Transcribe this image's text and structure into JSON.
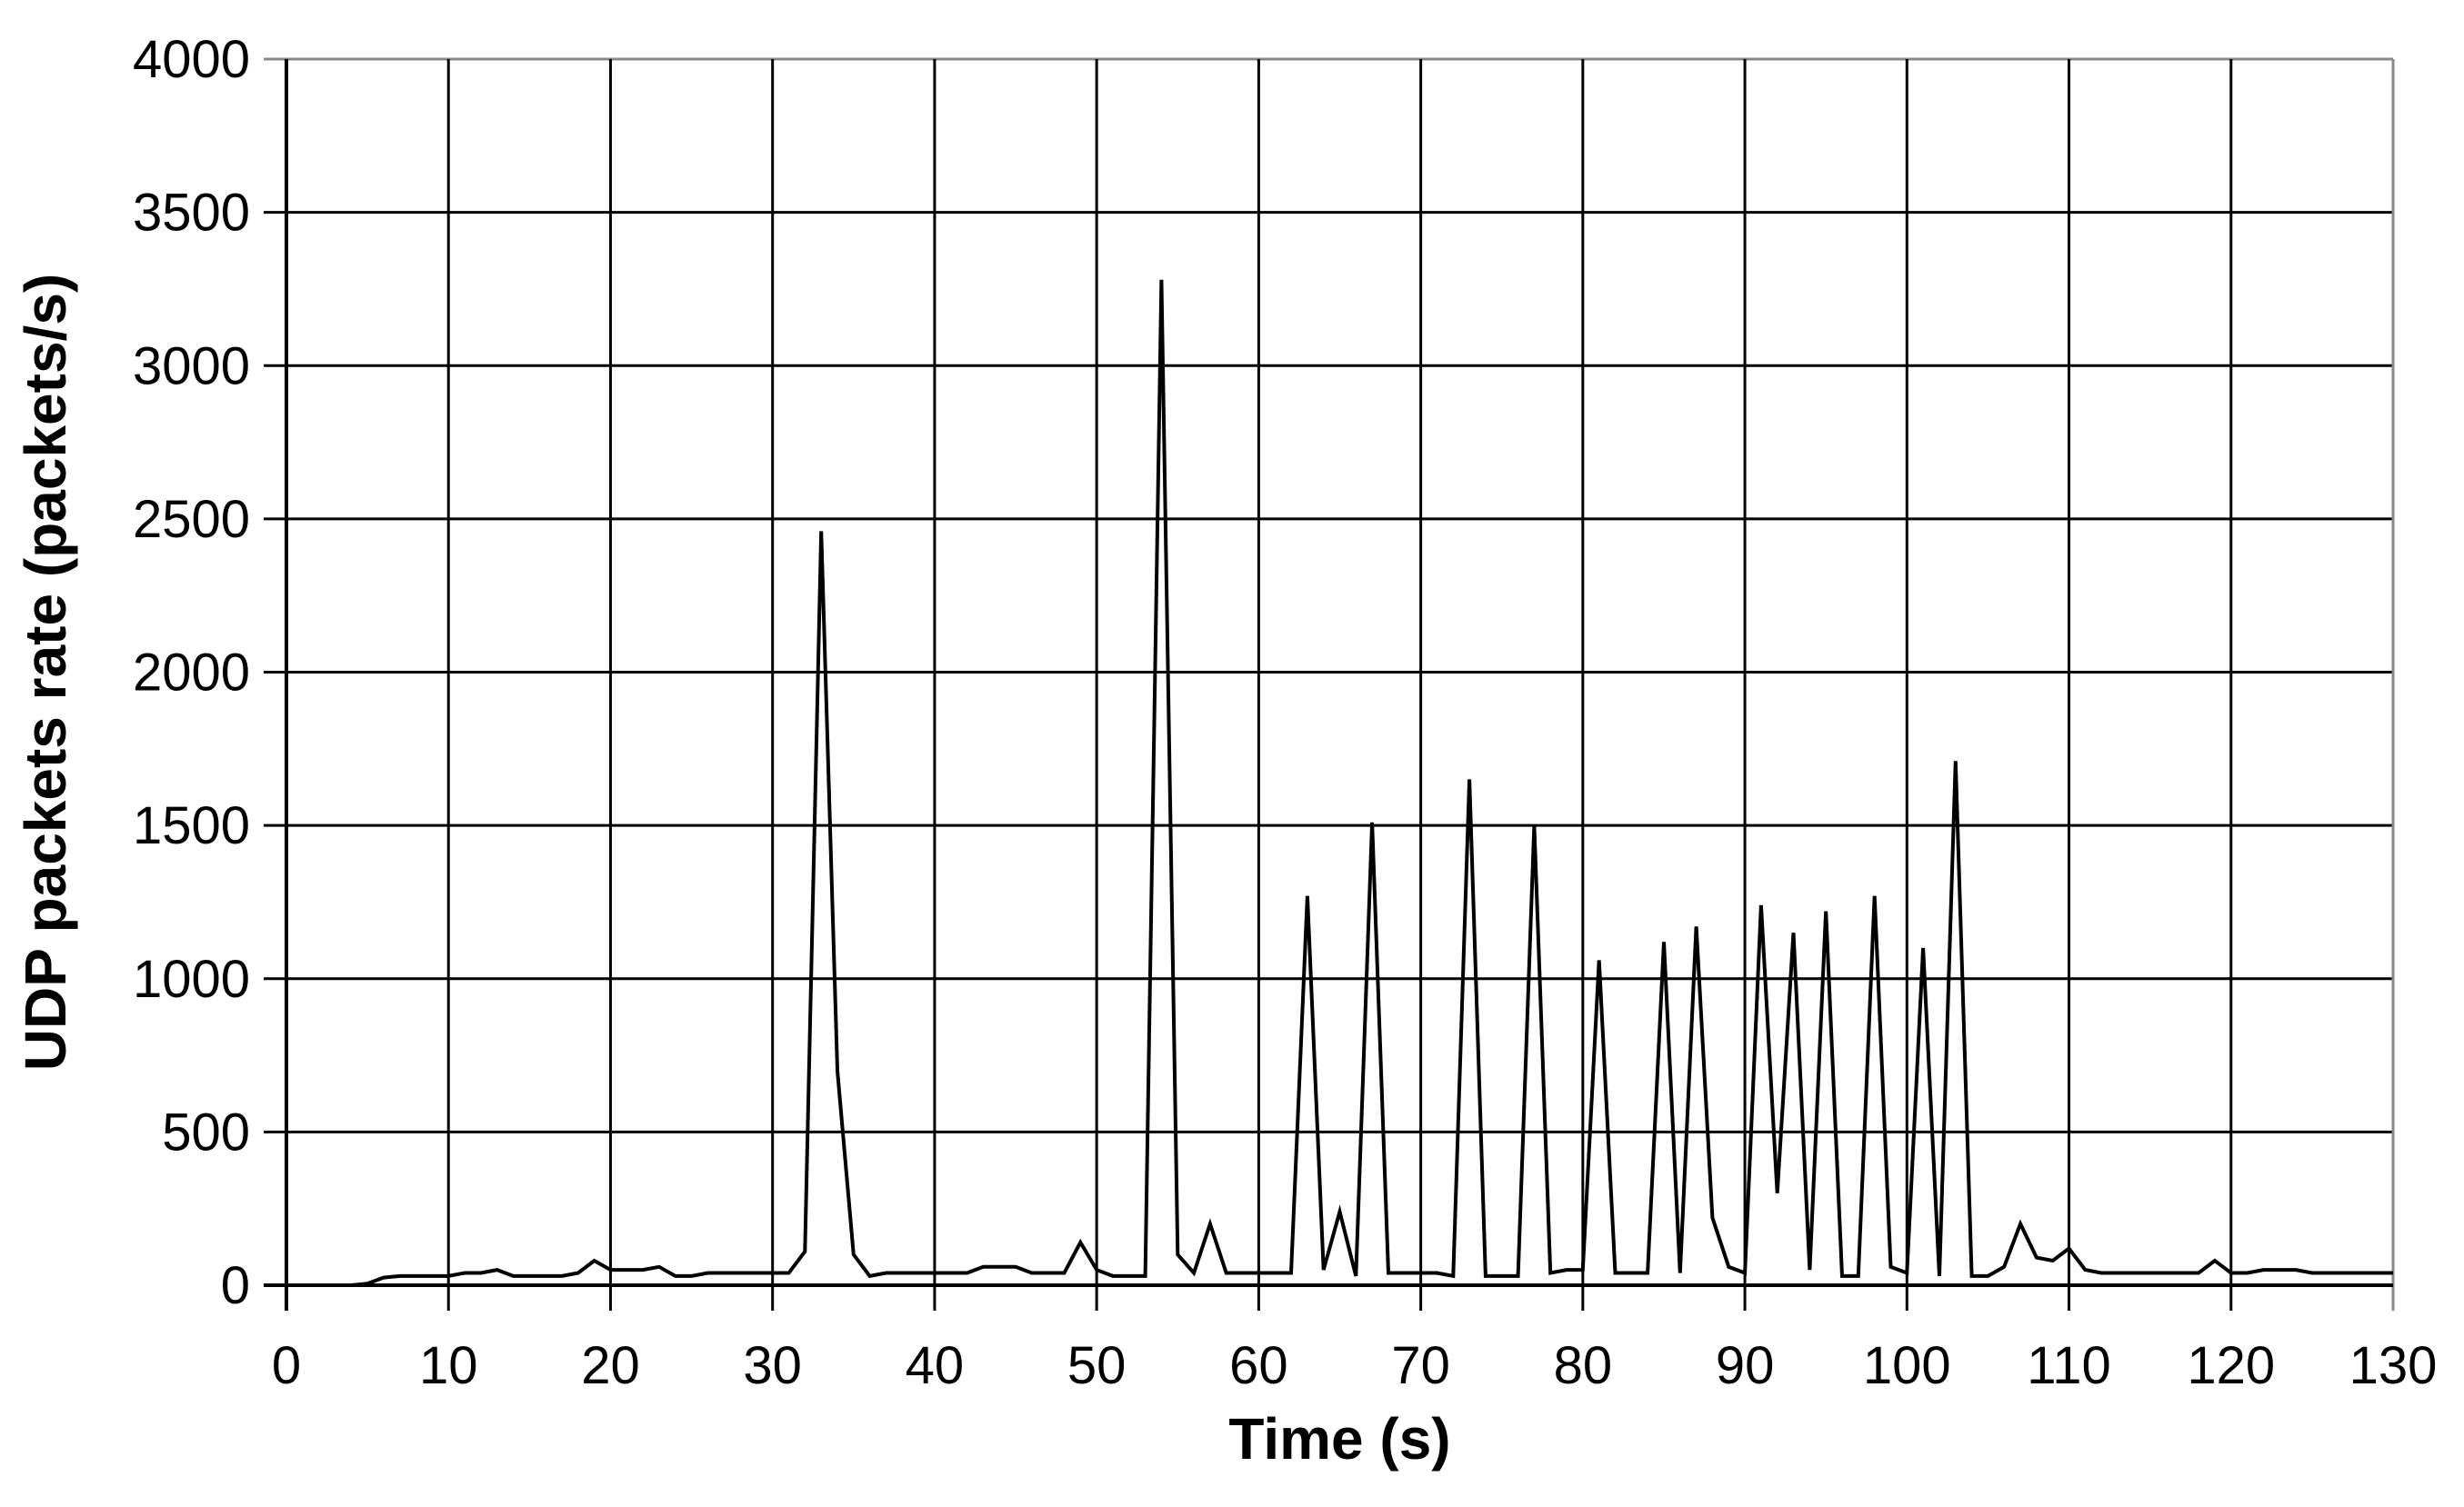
{
  "chart_data": {
    "type": "line",
    "title": "",
    "xlabel": "Time (s)",
    "ylabel": "UDP packets rate (packets/s)",
    "xlim": [
      0,
      130
    ],
    "ylim": [
      0,
      4000
    ],
    "x_ticks": [
      0,
      10,
      20,
      30,
      40,
      50,
      60,
      70,
      80,
      90,
      100,
      110,
      120,
      130
    ],
    "y_ticks": [
      0,
      500,
      1000,
      1500,
      2000,
      2500,
      3000,
      3500,
      4000
    ],
    "grid": true,
    "legend": null,
    "line_color": "#000000",
    "series": [
      {
        "name": "UDP packets rate",
        "x": [
          0,
          1,
          2,
          3,
          4,
          5,
          6,
          7,
          8,
          9,
          10,
          11,
          12,
          13,
          14,
          15,
          16,
          17,
          18,
          19,
          20,
          21,
          22,
          23,
          24,
          25,
          26,
          27,
          28,
          29,
          30,
          31,
          32,
          33,
          34,
          35,
          36,
          37,
          38,
          39,
          40,
          41,
          42,
          43,
          44,
          45,
          46,
          47,
          48,
          49,
          50,
          51,
          52,
          53,
          54,
          55,
          56,
          57,
          58,
          59,
          60,
          61,
          62,
          63,
          64,
          65,
          66,
          67,
          68,
          69,
          70,
          71,
          72,
          73,
          74,
          75,
          76,
          77,
          78,
          79,
          80,
          81,
          82,
          83,
          84,
          85,
          86,
          87,
          88,
          89,
          90,
          91,
          92,
          93,
          94,
          95,
          96,
          97,
          98,
          99,
          100,
          101,
          102,
          103,
          104,
          105,
          106,
          107,
          108,
          109,
          110,
          111,
          112,
          113,
          114,
          115,
          116,
          117,
          118,
          119,
          120,
          121,
          122,
          123,
          124,
          125,
          126,
          127,
          128,
          129,
          130
        ],
        "values": [
          0,
          0,
          0,
          0,
          0,
          5,
          25,
          30,
          30,
          30,
          30,
          40,
          40,
          50,
          30,
          30,
          30,
          30,
          40,
          80,
          50,
          50,
          50,
          60,
          30,
          30,
          40,
          40,
          40,
          40,
          40,
          40,
          110,
          2460,
          700,
          100,
          30,
          40,
          40,
          40,
          40,
          40,
          40,
          60,
          60,
          60,
          40,
          40,
          40,
          140,
          50,
          30,
          30,
          30,
          3280,
          100,
          40,
          200,
          40,
          40,
          40,
          40,
          40,
          1270,
          50,
          240,
          30,
          1510,
          40,
          40,
          40,
          40,
          30,
          1650,
          30,
          30,
          30,
          1500,
          40,
          50,
          50,
          1060,
          40,
          40,
          40,
          1120,
          40,
          1170,
          220,
          60,
          40,
          1240,
          300,
          1150,
          50,
          1220,
          30,
          30,
          1270,
          60,
          40,
          1100,
          30,
          1710,
          30,
          30,
          60,
          200,
          90,
          80,
          120,
          50,
          40,
          40,
          40,
          40,
          40,
          40,
          40,
          80,
          40,
          40,
          50,
          50,
          50,
          40,
          40,
          40,
          40,
          40,
          40
        ]
      }
    ]
  }
}
